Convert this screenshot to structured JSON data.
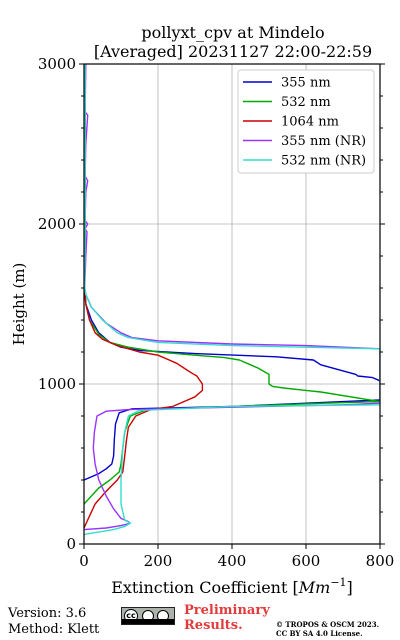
{
  "chart_data": {
    "type": "line",
    "title": "pollyxt_cpv at Mindelo",
    "subtitle": "[Averaged] 20231127 22:00-22:59",
    "xlabel_text": "Extinction Coefficient [",
    "xlabel_unit": "Mm",
    "xlabel_exp": "−1",
    "xlabel_close": "]",
    "ylabel": "Height (m)",
    "xlim": [
      0,
      800
    ],
    "ylim": [
      0,
      3000
    ],
    "xticks": [
      0,
      200,
      400,
      600,
      800
    ],
    "yticks": [
      0,
      1000,
      2000,
      3000
    ],
    "grid": true,
    "legend_position": "top-right",
    "series": [
      {
        "name": "355 nm",
        "color": "#0000cc",
        "points": [
          [
            0,
            400
          ],
          [
            40,
            440
          ],
          [
            60,
            470
          ],
          [
            75,
            500
          ],
          [
            80,
            550
          ],
          [
            82,
            650
          ],
          [
            85,
            750
          ],
          [
            95,
            820
          ],
          [
            130,
            845
          ],
          [
            400,
            860
          ],
          [
            600,
            880
          ],
          [
            800,
            900
          ],
          [
            800,
            880
          ],
          [
            900,
            870
          ],
          [
            820,
            1000
          ],
          [
            780,
            1040
          ],
          [
            740,
            1050
          ],
          [
            735,
            1060
          ],
          [
            640,
            1120
          ],
          [
            620,
            1150
          ],
          [
            520,
            1170
          ],
          [
            300,
            1190
          ],
          [
            150,
            1210
          ],
          [
            100,
            1230
          ],
          [
            70,
            1260
          ],
          [
            40,
            1320
          ],
          [
            20,
            1400
          ],
          [
            5,
            1500
          ],
          [
            2,
            1600
          ],
          [
            3,
            2000
          ],
          [
            3,
            3000
          ]
        ]
      },
      {
        "name": "532 nm",
        "color": "#00aa00",
        "points": [
          [
            0,
            250
          ],
          [
            40,
            350
          ],
          [
            70,
            400
          ],
          [
            95,
            450
          ],
          [
            100,
            500
          ],
          [
            105,
            600
          ],
          [
            110,
            700
          ],
          [
            125,
            800
          ],
          [
            170,
            840
          ],
          [
            400,
            860
          ],
          [
            650,
            880
          ],
          [
            800,
            890
          ],
          [
            640,
            950
          ],
          [
            600,
            960
          ],
          [
            540,
            975
          ],
          [
            510,
            985
          ],
          [
            500,
            1000
          ],
          [
            500,
            1060
          ],
          [
            470,
            1100
          ],
          [
            450,
            1120
          ],
          [
            420,
            1150
          ],
          [
            380,
            1165
          ],
          [
            300,
            1180
          ],
          [
            200,
            1200
          ],
          [
            120,
            1230
          ],
          [
            70,
            1260
          ],
          [
            40,
            1310
          ],
          [
            15,
            1400
          ],
          [
            5,
            1500
          ],
          [
            2,
            1600
          ],
          [
            3,
            2000
          ],
          [
            3,
            3000
          ]
        ]
      },
      {
        "name": "1064 nm",
        "color": "#cc0000",
        "points": [
          [
            0,
            100
          ],
          [
            30,
            250
          ],
          [
            60,
            330
          ],
          [
            90,
            400
          ],
          [
            105,
            450
          ],
          [
            110,
            550
          ],
          [
            115,
            650
          ],
          [
            120,
            730
          ],
          [
            140,
            800
          ],
          [
            180,
            840
          ],
          [
            240,
            860
          ],
          [
            270,
            890
          ],
          [
            300,
            920
          ],
          [
            320,
            960
          ],
          [
            320,
            1000
          ],
          [
            305,
            1050
          ],
          [
            290,
            1070
          ],
          [
            270,
            1100
          ],
          [
            250,
            1130
          ],
          [
            220,
            1160
          ],
          [
            200,
            1180
          ],
          [
            150,
            1200
          ],
          [
            90,
            1240
          ],
          [
            50,
            1280
          ],
          [
            30,
            1320
          ],
          [
            15,
            1400
          ],
          [
            5,
            1500
          ],
          [
            2,
            1600
          ],
          [
            3,
            2000
          ],
          [
            3,
            3000
          ]
        ]
      },
      {
        "name": "355 nm (NR)",
        "color": "#9933ff",
        "points": [
          [
            0,
            90
          ],
          [
            60,
            100
          ],
          [
            100,
            115
          ],
          [
            125,
            130
          ],
          [
            120,
            140
          ],
          [
            100,
            160
          ],
          [
            80,
            220
          ],
          [
            60,
            300
          ],
          [
            40,
            400
          ],
          [
            30,
            500
          ],
          [
            25,
            600
          ],
          [
            28,
            700
          ],
          [
            35,
            800
          ],
          [
            60,
            830
          ],
          [
            120,
            840
          ],
          [
            300,
            850
          ],
          [
            700,
            870
          ],
          [
            800,
            880
          ],
          [
            800,
            1220
          ],
          [
            600,
            1240
          ],
          [
            400,
            1250
          ],
          [
            200,
            1270
          ],
          [
            130,
            1290
          ],
          [
            100,
            1320
          ],
          [
            60,
            1380
          ],
          [
            20,
            1480
          ],
          [
            5,
            1560
          ],
          [
            2,
            1600
          ],
          [
            5,
            1800
          ],
          [
            8,
            1950
          ],
          [
            3,
            1970
          ],
          [
            10,
            2000
          ],
          [
            3,
            2020
          ],
          [
            5,
            2200
          ],
          [
            10,
            2270
          ],
          [
            3,
            2300
          ],
          [
            5,
            2500
          ],
          [
            10,
            2680
          ],
          [
            3,
            2700
          ],
          [
            5,
            3000
          ]
        ]
      },
      {
        "name": "532 nm (NR)",
        "color": "#33ddcc",
        "points": [
          [
            0,
            60
          ],
          [
            80,
            90
          ],
          [
            110,
            110
          ],
          [
            125,
            130
          ],
          [
            110,
            150
          ],
          [
            100,
            250
          ],
          [
            100,
            400
          ],
          [
            105,
            600
          ],
          [
            110,
            700
          ],
          [
            120,
            800
          ],
          [
            150,
            835
          ],
          [
            400,
            860
          ],
          [
            800,
            870
          ],
          [
            800,
            1220
          ],
          [
            600,
            1230
          ],
          [
            400,
            1240
          ],
          [
            200,
            1260
          ],
          [
            120,
            1290
          ],
          [
            90,
            1320
          ],
          [
            50,
            1400
          ],
          [
            20,
            1480
          ],
          [
            5,
            1560
          ],
          [
            2,
            1600
          ],
          [
            3,
            2000
          ],
          [
            3,
            3000
          ]
        ]
      }
    ]
  },
  "footer": {
    "version": "Version: 3.6",
    "method": "Method: Klett",
    "badge_cc": "cc",
    "preliminary_line1": "Preliminary",
    "preliminary_line2": "Results.",
    "copyright_line1": "© TROPOS & OSCM 2023.",
    "copyright_line2": "CC BY SA 4.0 License."
  }
}
